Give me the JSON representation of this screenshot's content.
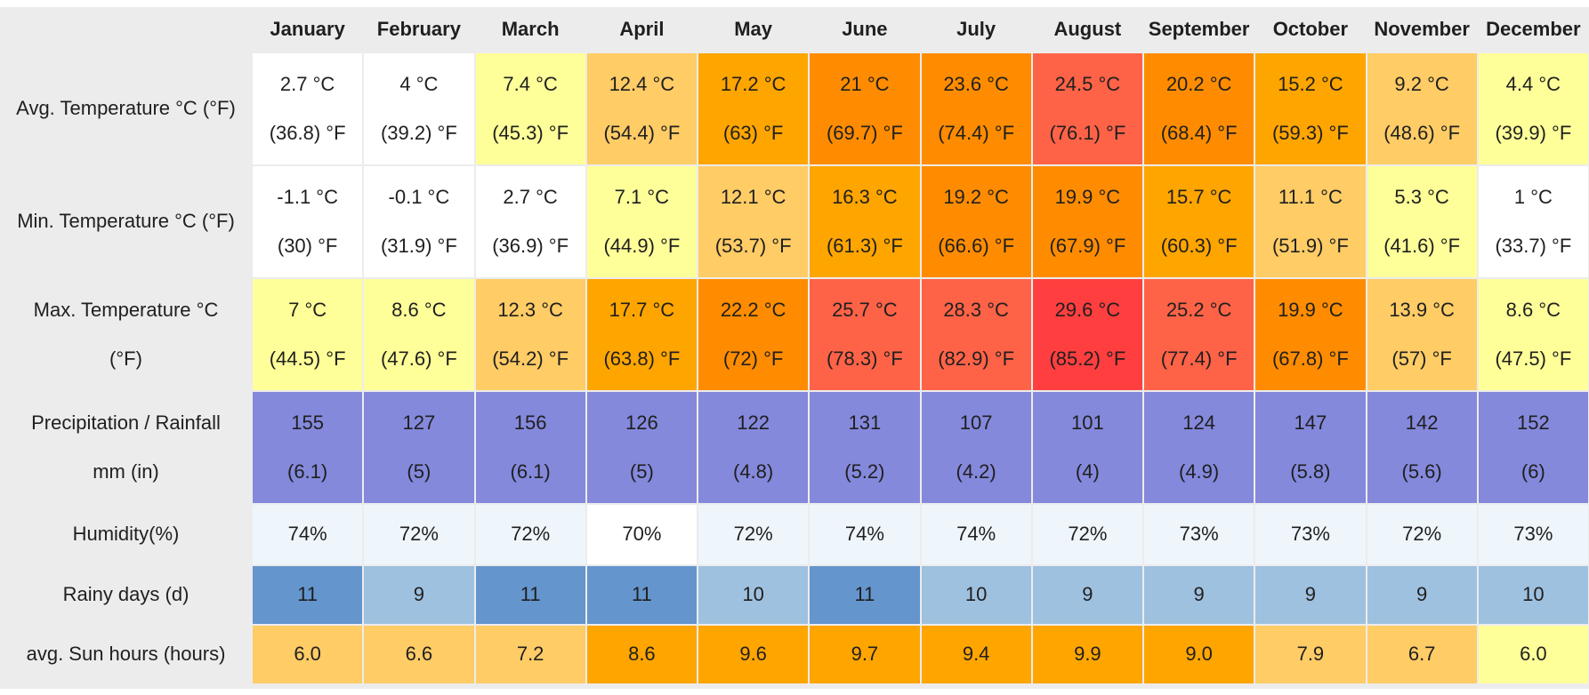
{
  "chart_data": {
    "type": "table",
    "months": [
      "January",
      "February",
      "March",
      "April",
      "May",
      "June",
      "July",
      "August",
      "September",
      "October",
      "November",
      "December"
    ],
    "rows": [
      {
        "key": "avg_temp",
        "label_lines": [
          "Avg. Temperature °C (°F)"
        ],
        "line1": [
          "2.7 °C",
          "4 °C",
          "7.4 °C",
          "12.4 °C",
          "17.2 °C",
          "21 °C",
          "23.6 °C",
          "24.5 °C",
          "20.2 °C",
          "15.2 °C",
          "9.2 °C",
          "4.4 °C"
        ],
        "line2": [
          "(36.8) °F",
          "(39.2) °F",
          "(45.3) °F",
          "(54.4) °F",
          "(63) °F",
          "(69.7) °F",
          "(74.4) °F",
          "(76.1) °F",
          "(68.4) °F",
          "(59.3) °F",
          "(48.6) °F",
          "(39.9) °F"
        ],
        "colors": [
          "#ffffff",
          "#ffffff",
          "#ffff99",
          "#ffcc66",
          "#ffa500",
          "#ff8c00",
          "#ff8c00",
          "#ff6347",
          "#ff8c00",
          "#ffa500",
          "#ffcc66",
          "#ffff99"
        ]
      },
      {
        "key": "min_temp",
        "label_lines": [
          "Min. Temperature °C (°F)"
        ],
        "line1": [
          "-1.1 °C",
          "-0.1 °C",
          "2.7 °C",
          "7.1 °C",
          "12.1 °C",
          "16.3 °C",
          "19.2 °C",
          "19.9 °C",
          "15.7 °C",
          "11.1 °C",
          "5.3 °C",
          "1 °C"
        ],
        "line2": [
          "(30) °F",
          "(31.9) °F",
          "(36.9) °F",
          "(44.9) °F",
          "(53.7) °F",
          "(61.3) °F",
          "(66.6) °F",
          "(67.9) °F",
          "(60.3) °F",
          "(51.9) °F",
          "(41.6) °F",
          "(33.7) °F"
        ],
        "colors": [
          "#ffffff",
          "#ffffff",
          "#ffffff",
          "#ffff99",
          "#ffcc66",
          "#ffa500",
          "#ff8c00",
          "#ff8c00",
          "#ffa500",
          "#ffcc66",
          "#ffff99",
          "#ffffff"
        ]
      },
      {
        "key": "max_temp",
        "label_lines": [
          "Max. Temperature °C",
          "(°F)"
        ],
        "line1": [
          "7 °C",
          "8.6 °C",
          "12.3 °C",
          "17.7 °C",
          "22.2 °C",
          "25.7 °C",
          "28.3 °C",
          "29.6 °C",
          "25.2 °C",
          "19.9 °C",
          "13.9 °C",
          "8.6 °C"
        ],
        "line2": [
          "(44.5) °F",
          "(47.6) °F",
          "(54.2) °F",
          "(63.8) °F",
          "(72) °F",
          "(78.3) °F",
          "(82.9) °F",
          "(85.2) °F",
          "(77.4) °F",
          "(67.8) °F",
          "(57) °F",
          "(47.5) °F"
        ],
        "colors": [
          "#ffff99",
          "#ffff99",
          "#ffcc66",
          "#ffa500",
          "#ff8c00",
          "#ff6347",
          "#ff6347",
          "#ff3f3f",
          "#ff6347",
          "#ff8c00",
          "#ffcc66",
          "#ffff99"
        ]
      },
      {
        "key": "precipitation",
        "label_lines": [
          "Precipitation / Rainfall",
          "mm (in)"
        ],
        "line1": [
          "155",
          "127",
          "156",
          "126",
          "122",
          "131",
          "107",
          "101",
          "124",
          "147",
          "142",
          "152"
        ],
        "line2": [
          "(6.1)",
          "(5)",
          "(6.1)",
          "(5)",
          "(4.8)",
          "(5.2)",
          "(4.2)",
          "(4)",
          "(4.9)",
          "(5.8)",
          "(5.6)",
          "(6)"
        ],
        "colors": [
          "#8489dc",
          "#8489dc",
          "#8489dc",
          "#8489dc",
          "#8489dc",
          "#8489dc",
          "#8489dc",
          "#8489dc",
          "#8489dc",
          "#8489dc",
          "#8489dc",
          "#8489dc"
        ]
      },
      {
        "key": "humidity",
        "label_lines": [
          "Humidity(%)"
        ],
        "line1": [
          "74%",
          "72%",
          "72%",
          "70%",
          "72%",
          "74%",
          "74%",
          "72%",
          "73%",
          "73%",
          "72%",
          "73%"
        ],
        "line2": [],
        "colors": [
          "#eef5fb",
          "#eef5fb",
          "#eef5fb",
          "#ffffff",
          "#eef5fb",
          "#eef5fb",
          "#eef5fb",
          "#eef5fb",
          "#eef5fb",
          "#eef5fb",
          "#eef5fb",
          "#eef5fb"
        ]
      },
      {
        "key": "rainy_days",
        "label_lines": [
          "Rainy days (d)"
        ],
        "line1": [
          "11",
          "9",
          "11",
          "11",
          "10",
          "11",
          "10",
          "9",
          "9",
          "9",
          "9",
          "10"
        ],
        "line2": [],
        "colors": [
          "#6495cd",
          "#9fc1e0",
          "#6495cd",
          "#6495cd",
          "#9fc1e0",
          "#6495cd",
          "#9fc1e0",
          "#9fc1e0",
          "#9fc1e0",
          "#9fc1e0",
          "#9fc1e0",
          "#9fc1e0"
        ]
      },
      {
        "key": "sun_hours",
        "label_lines": [
          "avg. Sun hours (hours)"
        ],
        "line1": [
          "6.0",
          "6.6",
          "7.2",
          "8.6",
          "9.6",
          "9.7",
          "9.4",
          "9.9",
          "9.0",
          "7.9",
          "6.7",
          "6.0"
        ],
        "line2": [],
        "colors": [
          "#ffcc66",
          "#ffcc66",
          "#ffcc66",
          "#ffa500",
          "#ffa500",
          "#ffa500",
          "#ffa500",
          "#ffa500",
          "#ffa500",
          "#ffcc66",
          "#ffcc66",
          "#ffff99"
        ]
      }
    ]
  }
}
